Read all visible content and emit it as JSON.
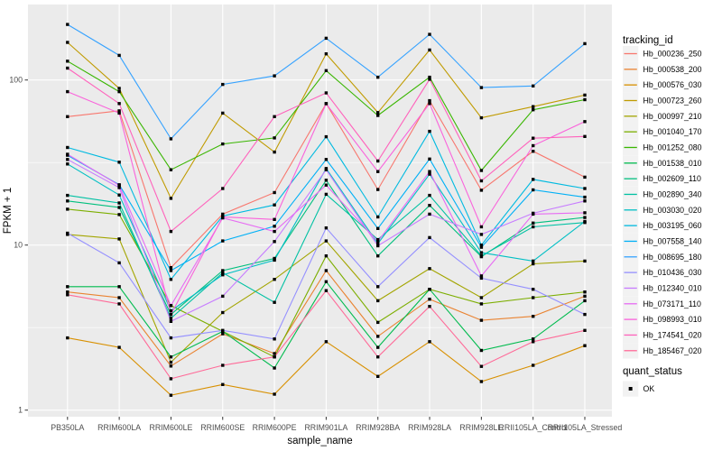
{
  "chart_data": {
    "type": "line",
    "title": "",
    "xlabel": "sample_name",
    "ylabel": "FPKM + 1",
    "y_scale": "log10",
    "ylim": [
      1,
      280
    ],
    "y_major_ticks": [
      1,
      10,
      100
    ],
    "y_minor_ticks": [
      3.162,
      31.62
    ],
    "grid": true,
    "panel_bg": "#EBEBEB",
    "grid_color": "#FFFFFF",
    "axis_text_color": "#4D4D4D",
    "tick_color": "#333333",
    "point_color": "#000000",
    "point_shape": "square",
    "legend_position": "right",
    "legend_key_bg": "#F2F2F2",
    "categories": [
      "PB350LA",
      "RRIM600LA",
      "RRIM600LE",
      "RRIM600SE",
      "RRIM600PE",
      "RRIM901LA",
      "RRIM928BA",
      "RRIM928LA",
      "RRIM928LE",
      "RRII105LA_Control",
      "RRII105LA_Stressed"
    ],
    "legends": {
      "tracking": {
        "title": "tracking_id"
      },
      "quant": {
        "title": "quant_status",
        "items": [
          "OK"
        ]
      }
    },
    "series": [
      {
        "name": "Hb_000236_250",
        "color": "#F8766D",
        "values": [
          60,
          65,
          7.3,
          15.4,
          20.8,
          72,
          21.7,
          75,
          21.5,
          37,
          25.8
        ]
      },
      {
        "name": "Hb_000538_200",
        "color": "#EA8331",
        "values": [
          5.2,
          4.8,
          1.85,
          2.9,
          2.2,
          7.0,
          2.8,
          4.7,
          3.5,
          3.7,
          4.9
        ]
      },
      {
        "name": "Hb_000576_030",
        "color": "#D89000",
        "values": [
          2.74,
          2.4,
          1.23,
          1.43,
          1.25,
          2.6,
          1.6,
          2.6,
          1.49,
          1.87,
          2.46
        ]
      },
      {
        "name": "Hb_000723_260",
        "color": "#C09B00",
        "values": [
          169,
          89,
          19.2,
          63,
          36.6,
          144,
          63.5,
          152,
          59,
          69,
          81
        ]
      },
      {
        "name": "Hb_000997_210",
        "color": "#A3A500",
        "values": [
          11.6,
          10.9,
          1.95,
          3.9,
          6.2,
          10.6,
          4.6,
          7.2,
          4.8,
          7.7,
          8.0
        ]
      },
      {
        "name": "Hb_001040_170",
        "color": "#7CAE00",
        "values": [
          16.5,
          15.3,
          4.3,
          3.0,
          2.1,
          8.6,
          3.4,
          5.4,
          4.4,
          4.8,
          5.2
        ]
      },
      {
        "name": "Hb_001252_080",
        "color": "#39B600",
        "values": [
          130,
          85,
          28.6,
          41,
          44.6,
          114,
          61,
          104,
          28.3,
          66,
          76
        ]
      },
      {
        "name": "Hb_001538_010",
        "color": "#00BB4E",
        "values": [
          5.6,
          5.6,
          2.1,
          3.0,
          1.8,
          6.0,
          2.4,
          5.4,
          2.3,
          2.7,
          4.6
        ]
      },
      {
        "name": "Hb_002609_110",
        "color": "#00BF7D",
        "values": [
          18.5,
          16.9,
          3.8,
          7.0,
          8.3,
          24.7,
          8.6,
          17.4,
          8.5,
          13.6,
          14.7
        ]
      },
      {
        "name": "Hb_002890_340",
        "color": "#00C1A3",
        "values": [
          20,
          18,
          3.6,
          6.8,
          4.5,
          20.3,
          10.8,
          20,
          8.6,
          12.9,
          13.7
        ]
      },
      {
        "name": "Hb_003030_020",
        "color": "#00BFC4",
        "values": [
          31,
          20.1,
          4.0,
          6.6,
          8.1,
          29.1,
          10.2,
          26.9,
          9.0,
          8.0,
          13.9
        ]
      },
      {
        "name": "Hb_003195_060",
        "color": "#00BAE0",
        "values": [
          39,
          31.8,
          6.2,
          15.0,
          17.5,
          45.3,
          14.8,
          48.9,
          10,
          25,
          22
        ]
      },
      {
        "name": "Hb_007558_140",
        "color": "#00B0F6",
        "values": [
          35,
          23.2,
          7.0,
          10.6,
          13.0,
          33,
          12.6,
          33.2,
          9.7,
          21.6,
          19.5
        ]
      },
      {
        "name": "Hb_008695_180",
        "color": "#35A2FF",
        "values": [
          217,
          141,
          44,
          94,
          106,
          179,
          104,
          189,
          90,
          92,
          166
        ]
      },
      {
        "name": "Hb_010436_030",
        "color": "#9590FF",
        "values": [
          11.8,
          7.8,
          2.74,
          3.04,
          2.7,
          12.7,
          5.6,
          11.1,
          6.3,
          5.4,
          3.8
        ]
      },
      {
        "name": "Hb_012340_010",
        "color": "#C77CFF",
        "values": [
          33,
          22.3,
          3.45,
          4.9,
          10.5,
          28.6,
          9.9,
          15.4,
          11.6,
          15.6,
          18.5
        ]
      },
      {
        "name": "Hb_073171_110",
        "color": "#E76BF3",
        "values": [
          35.5,
          23,
          4.3,
          14.6,
          12.1,
          23.1,
          10.5,
          27.9,
          6.5,
          15.4,
          15.7
        ]
      },
      {
        "name": "Hb_098993_010",
        "color": "#FA62DB",
        "values": [
          85,
          63,
          3.8,
          14.8,
          14.3,
          71.8,
          27.9,
          72,
          12.9,
          40,
          56
        ]
      },
      {
        "name": "Hb_174541_020",
        "color": "#FF62BC",
        "values": [
          118,
          72,
          12.1,
          22,
          60,
          83.5,
          32.3,
          101,
          24.5,
          44.4,
          45.5
        ]
      },
      {
        "name": "Hb_185467_020",
        "color": "#FF6A98",
        "values": [
          5.0,
          4.4,
          1.55,
          1.87,
          2.1,
          5.3,
          2.1,
          4.25,
          1.84,
          2.6,
          3.04
        ]
      }
    ]
  }
}
